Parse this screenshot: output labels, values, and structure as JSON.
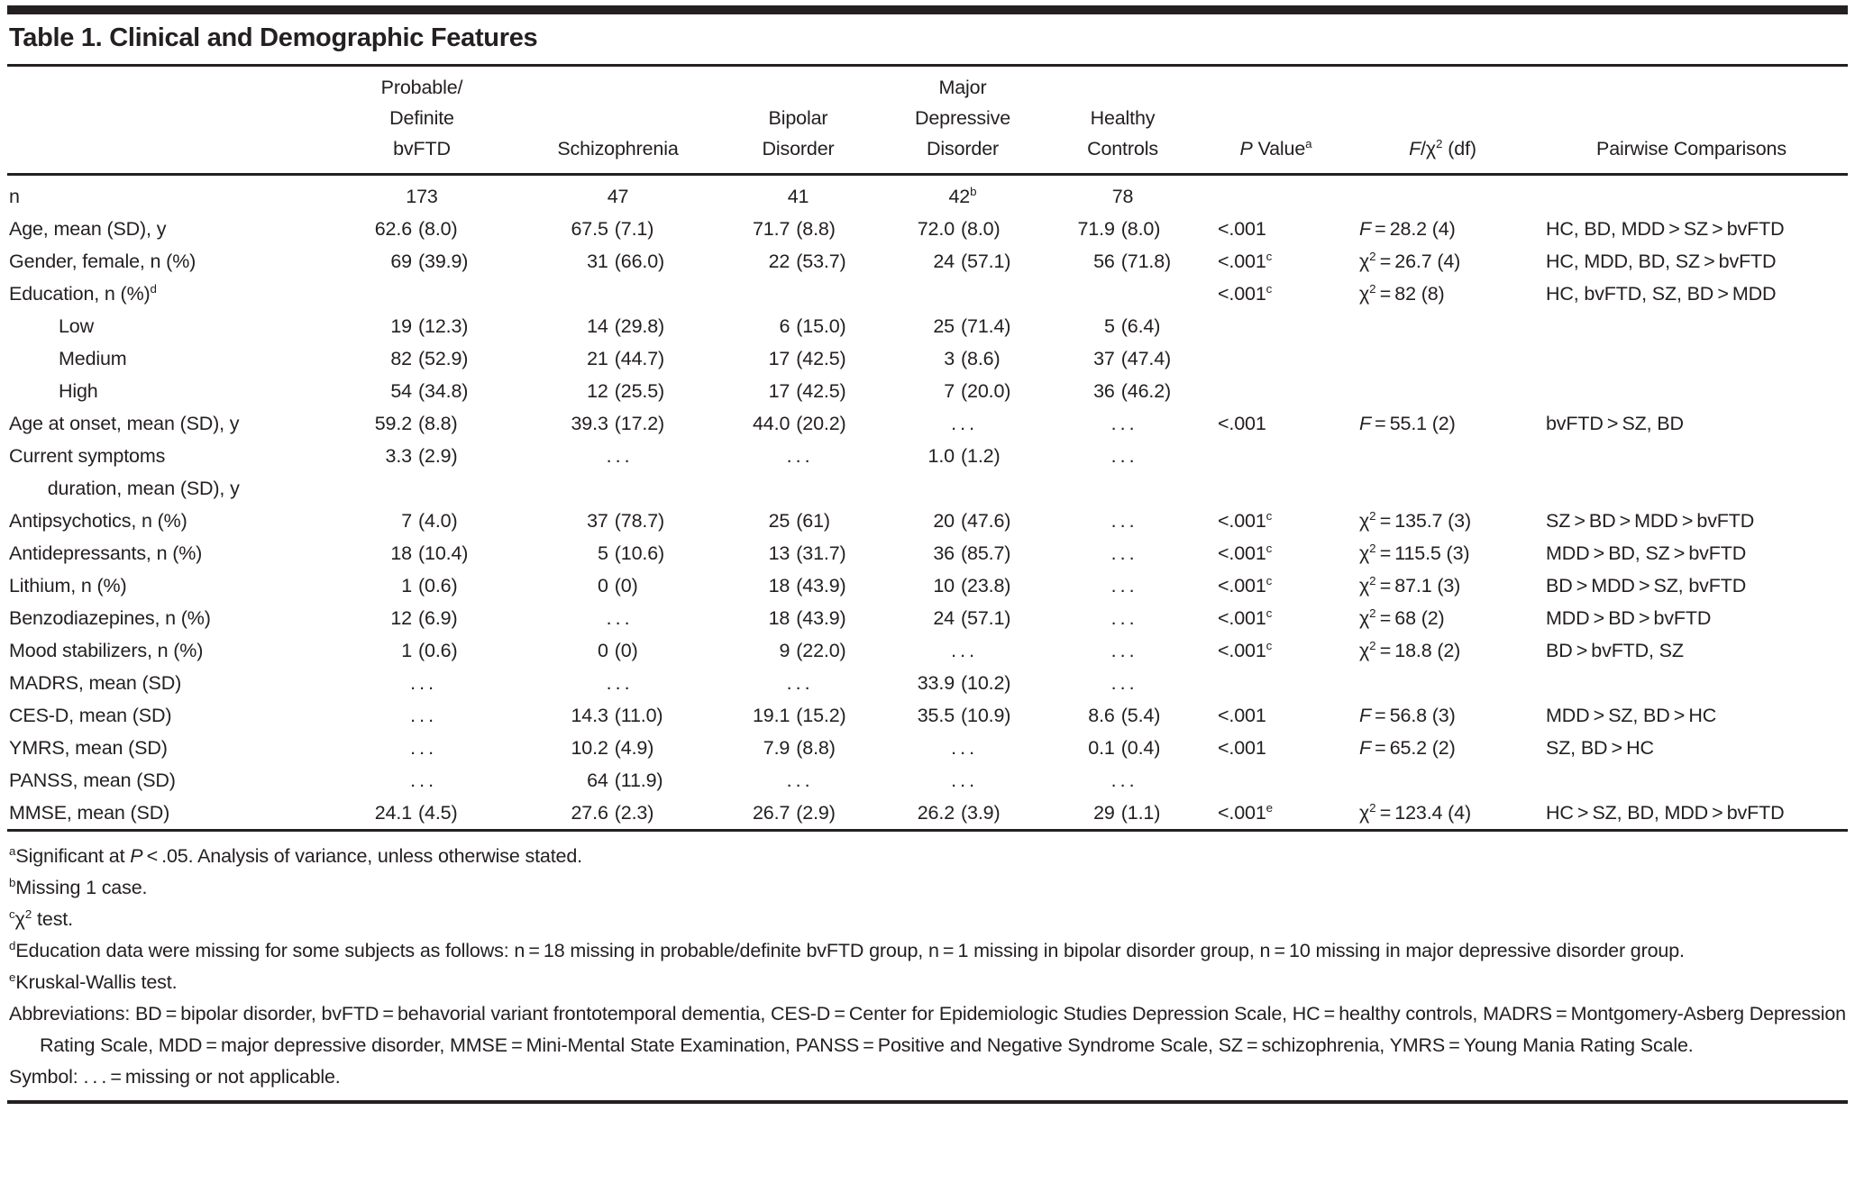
{
  "title": "Table 1. Clinical and Demographic Features",
  "columns": [
    {
      "id": "feature",
      "label": ""
    },
    {
      "id": "bvftd",
      "label": "Probable/\nDefinite\nbvFTD"
    },
    {
      "id": "schizophrenia",
      "label": "Schizophrenia"
    },
    {
      "id": "bipolar",
      "label": "Bipolar\nDisorder"
    },
    {
      "id": "mdd",
      "label": "Major\nDepressive\nDisorder"
    },
    {
      "id": "healthy-controls",
      "label": "Healthy\nControls"
    },
    {
      "id": "p-value",
      "label": "*P* Value^a^"
    },
    {
      "id": "f-chi2",
      "label": "*F*/χ^2^ (df)"
    },
    {
      "id": "pairwise",
      "label": "Pairwise Comparisons"
    }
  ],
  "rows": [
    {
      "label": "n",
      "cells": [
        "173",
        "47",
        "41",
        "42^b^",
        "78",
        "",
        "",
        ""
      ]
    },
    {
      "label": "Age, mean (SD), y",
      "cells": [
        "62.6 (8.0)",
        "67.5 (7.1)",
        "71.7 (8.8)",
        "72.0 (8.0)",
        "71.9 (8.0)",
        "<.001",
        "*F* = 28.2 (4)",
        "HC, BD, MDD > SZ > bvFTD"
      ]
    },
    {
      "label": "Gender, female, n (%)",
      "cells": [
        "69 (39.9)",
        "31 (66.0)",
        "22 (53.7)",
        "24 (57.1)",
        "56 (71.8)",
        "<.001^c^",
        "χ^2^ = 26.7 (4)",
        "HC, MDD, BD, SZ > bvFTD"
      ]
    },
    {
      "label": "Education, n (%)^d^",
      "cells": [
        "",
        "",
        "",
        "",
        "",
        "<.001^c^",
        "χ^2^ = 82 (8)",
        "HC, bvFTD, SZ, BD > MDD"
      ]
    },
    {
      "label": "Low",
      "indent": 1,
      "cells": [
        "19 (12.3)",
        "14 (29.8)",
        "6 (15.0)",
        "25 (71.4)",
        "5 (6.4)",
        "",
        "",
        ""
      ]
    },
    {
      "label": "Medium",
      "indent": 1,
      "cells": [
        "82 (52.9)",
        "21 (44.7)",
        "17 (42.5)",
        "3 (8.6)",
        "37 (47.4)",
        "",
        "",
        ""
      ]
    },
    {
      "label": "High",
      "indent": 1,
      "cells": [
        "54 (34.8)",
        "12 (25.5)",
        "17 (42.5)",
        "7 (20.0)",
        "36 (46.2)",
        "",
        "",
        ""
      ]
    },
    {
      "label": "Age at onset, mean (SD), y",
      "cells": [
        "59.2 (8.8)",
        "39.3 (17.2)",
        "44.0 (20.2)",
        "…",
        "…",
        "<.001",
        "*F* = 55.1 (2)",
        "bvFTD > SZ, BD"
      ]
    },
    {
      "label": "Current symptoms\n  duration, mean (SD), y",
      "cells": [
        "3.3 (2.9)",
        "…",
        "…",
        "1.0 (1.2)",
        "…",
        "",
        "",
        ""
      ]
    },
    {
      "label": "Antipsychotics, n (%)",
      "cells": [
        "7 (4.0)",
        "37 (78.7)",
        "25 (61)",
        "20 (47.6)",
        "…",
        "<.001^c^",
        "χ^2^ = 135.7 (3)",
        "SZ > BD > MDD > bvFTD"
      ]
    },
    {
      "label": "Antidepressants, n (%)",
      "cells": [
        "18 (10.4)",
        "5 (10.6)",
        "13 (31.7)",
        "36 (85.7)",
        "…",
        "<.001^c^",
        "χ^2^ = 115.5 (3)",
        "MDD > BD, SZ > bvFTD"
      ]
    },
    {
      "label": "Lithium, n (%)",
      "cells": [
        "1 (0.6)",
        "0 (0)",
        "18 (43.9)",
        "10 (23.8)",
        "…",
        "<.001^c^",
        "χ^2^ = 87.1 (3)",
        "BD > MDD > SZ, bvFTD"
      ]
    },
    {
      "label": "Benzodiazepines, n (%)",
      "cells": [
        "12 (6.9)",
        "…",
        "18 (43.9)",
        "24 (57.1)",
        "…",
        "<.001^c^",
        "χ^2^ = 68 (2)",
        "MDD > BD > bvFTD"
      ]
    },
    {
      "label": "Mood stabilizers, n (%)",
      "cells": [
        "1 (0.6)",
        "0 (0)",
        "9 (22.0)",
        "…",
        "…",
        "<.001^c^",
        "χ^2^ = 18.8 (2)",
        "BD > bvFTD, SZ"
      ]
    },
    {
      "label": "MADRS, mean (SD)",
      "cells": [
        "…",
        "…",
        "…",
        "33.9 (10.2)",
        "…",
        "",
        "",
        ""
      ]
    },
    {
      "label": "CES-D, mean (SD)",
      "cells": [
        "…",
        "14.3 (11.0)",
        "19.1 (15.2)",
        "35.5 (10.9)",
        "8.6 (5.4)",
        "<.001",
        "*F* = 56.8 (3)",
        "MDD > SZ, BD > HC"
      ]
    },
    {
      "label": "YMRS, mean (SD)",
      "cells": [
        "…",
        "10.2 (4.9)",
        "7.9 (8.8)",
        "…",
        "0.1 (0.4)",
        "<.001",
        "*F* = 65.2 (2)",
        "SZ, BD > HC"
      ]
    },
    {
      "label": "PANSS, mean (SD)",
      "cells": [
        "…",
        "64 (11.9)",
        "…",
        "…",
        "…",
        "",
        "",
        ""
      ]
    },
    {
      "label": "MMSE, mean (SD)",
      "cells": [
        "24.1 (4.5)",
        "27.6 (2.3)",
        "26.7 (2.9)",
        "26.2 (3.9)",
        "29 (1.1)",
        "<.001^e^",
        "χ^2^ = 123.4 (4)",
        "HC > SZ, BD, MDD > bvFTD"
      ]
    }
  ],
  "footnotes": [
    "^a^Significant at *P* < .05. Analysis of variance, unless otherwise stated.",
    "^b^Missing 1 case.",
    "^c^χ^2^ test.",
    "^d^Education data were missing for some subjects as follows: n = 18 missing in probable/definite bvFTD group, n = 1 missing in bipolar disorder group, n = 10 missing in major depressive disorder group.",
    "^e^Kruskal-Wallis test.",
    "Abbreviations: BD = bipolar disorder, bvFTD = behavorial variant frontotemporal dementia, CES-D = Center for Epidemiologic Studies Depression Scale, HC = healthy controls, MADRS = Montgomery-Asberg Depression Rating Scale, MDD = major depressive disorder, MMSE = Mini-Mental State Examination, PANSS = Positive and Negative Syndrome Scale, SZ = schizophrenia, YMRS = Young Mania Rating Scale.",
    "Symbol: … = missing or not applicable."
  ],
  "colors": {
    "ink": "#242021",
    "background": "#ffffff"
  }
}
